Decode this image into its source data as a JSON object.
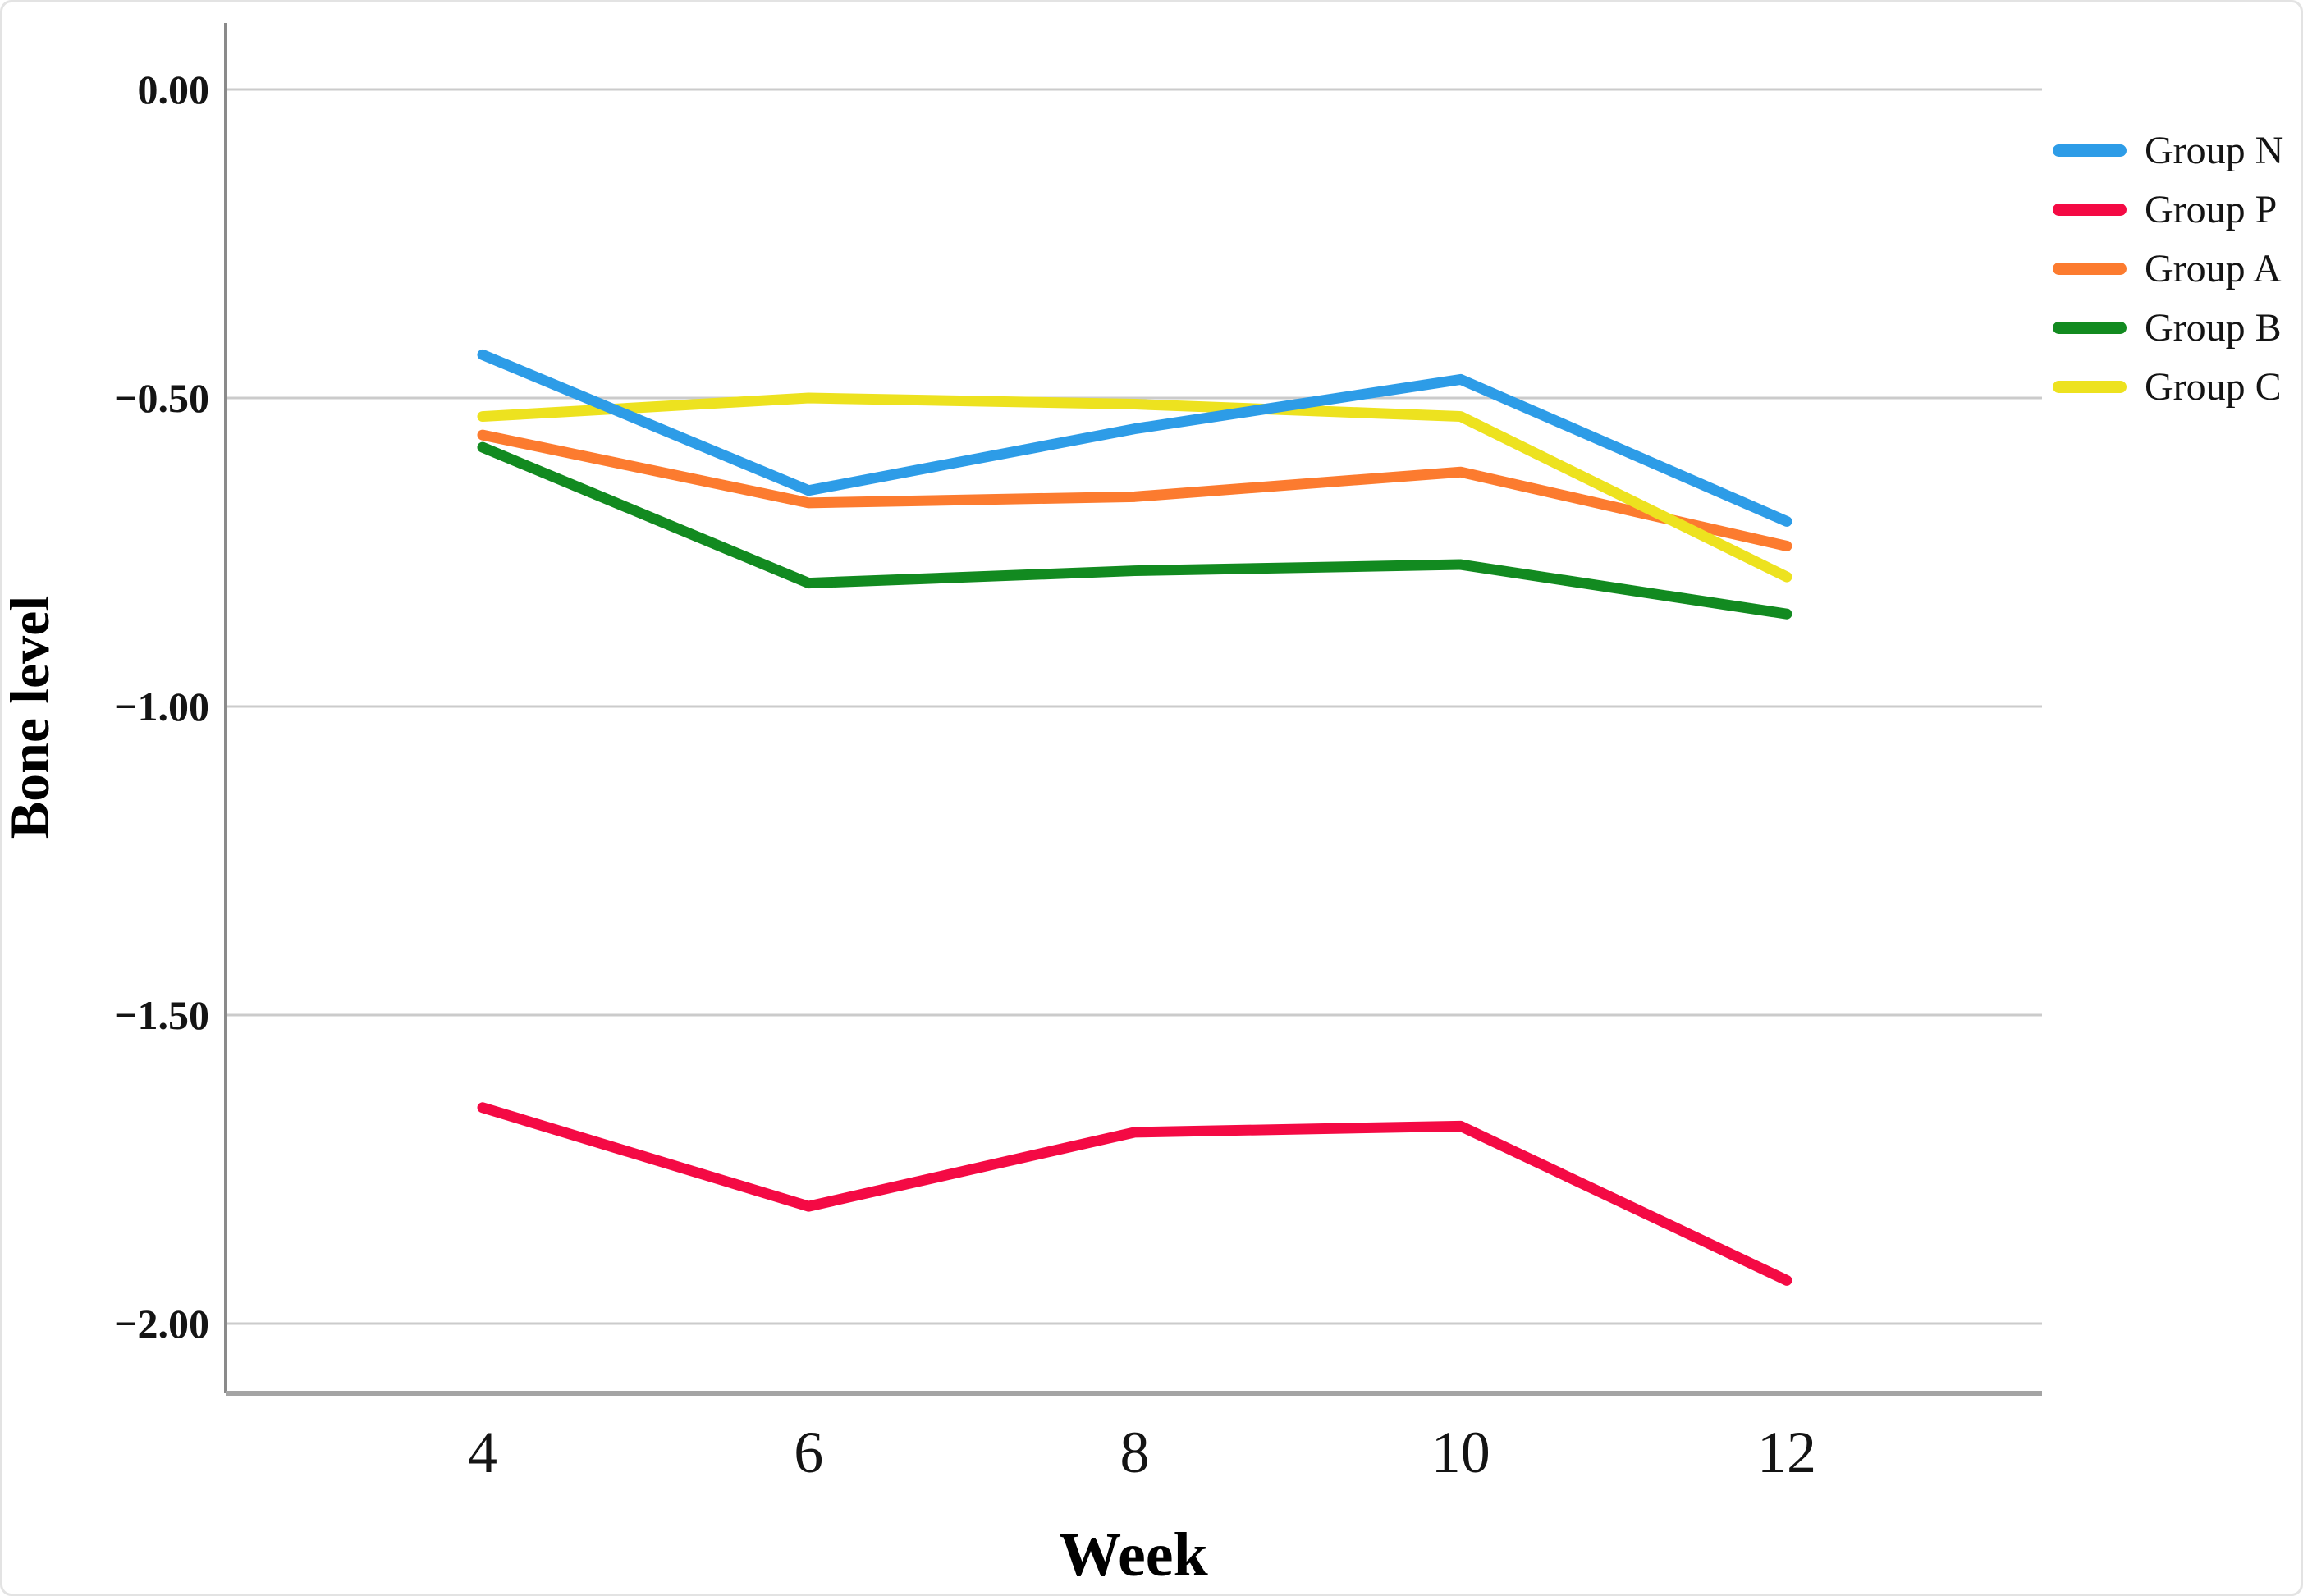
{
  "chart_data": {
    "type": "line",
    "xlabel": "Week",
    "ylabel": "Bone level",
    "x": [
      4,
      6,
      8,
      10,
      12
    ],
    "xtick_labels": [
      "4",
      "6",
      "8",
      "10",
      "12"
    ],
    "ytick_labels": [
      "0.00",
      "−0.50",
      "−1.00",
      "−1.50",
      "−2.00"
    ],
    "ytick_values": [
      0,
      -0.5,
      -1.0,
      -1.5,
      -2.0
    ],
    "ylim": [
      -2.12,
      0.12
    ],
    "grid": "horizontal",
    "legend_position": "right",
    "axis_color": "#8a8a8a",
    "gridline_color": "#cbcbcb",
    "series": [
      {
        "name": "Group N",
        "color": "#2d9ce7",
        "values": [
          -0.43,
          -0.65,
          -0.55,
          -0.47,
          -0.7
        ]
      },
      {
        "name": "Group P",
        "color": "#f40a44",
        "values": [
          -1.65,
          -1.81,
          -1.69,
          -1.68,
          -1.93
        ]
      },
      {
        "name": "Group A",
        "color": "#fc7b2f",
        "values": [
          -0.56,
          -0.67,
          -0.66,
          -0.62,
          -0.74
        ]
      },
      {
        "name": "Group B",
        "color": "#128a20",
        "values": [
          -0.58,
          -0.8,
          -0.78,
          -0.77,
          -0.85
        ]
      },
      {
        "name": "Group C",
        "color": "#ede21f",
        "values": [
          -0.53,
          -0.5,
          -0.51,
          -0.53,
          -0.79
        ]
      }
    ]
  }
}
